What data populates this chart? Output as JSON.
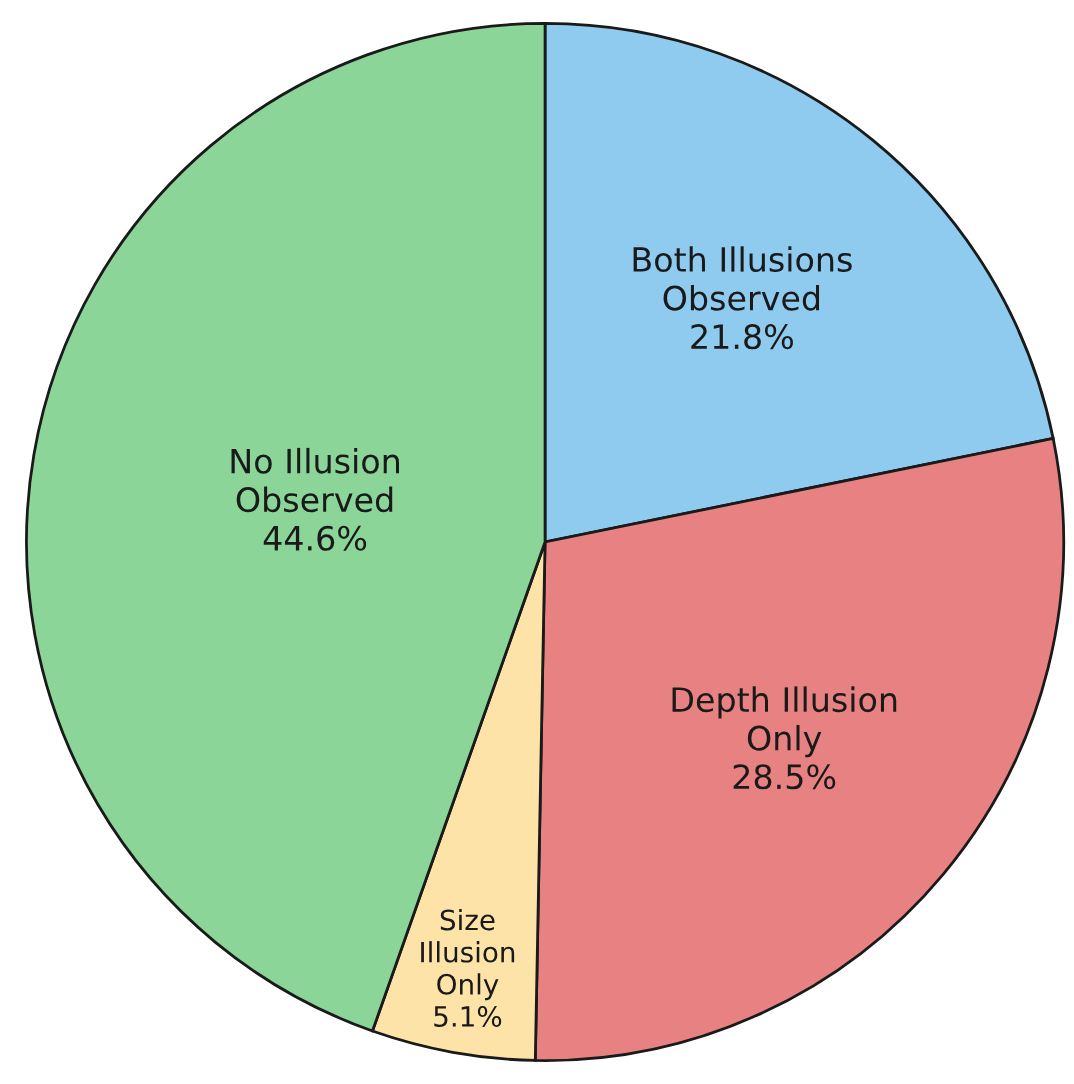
{
  "chart_data": {
    "type": "pie",
    "categories": [
      "Both Illusions\nObserved",
      "Depth Illusion\nOnly",
      "Size\nIllusion\nOnly",
      "No Illusion\nObserved"
    ],
    "values": [
      21.8,
      28.5,
      5.1,
      44.6
    ],
    "value_labels": [
      "21.8%",
      "28.5%",
      "5.1%",
      "44.6%"
    ],
    "colors": [
      "#8fcbef",
      "#e88282",
      "#fde3a7",
      "#8bd598"
    ],
    "legend": false
  }
}
